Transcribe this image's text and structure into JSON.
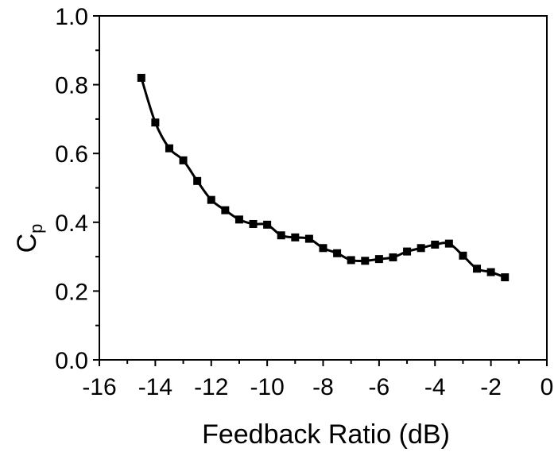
{
  "chart_data": {
    "type": "line",
    "xlabel": "Feedback Ratio (dB)",
    "ylabel_main": "C",
    "ylabel_sub": "p",
    "xlim": [
      -16,
      0
    ],
    "ylim": [
      0.0,
      1.0
    ],
    "xticks": [
      -16,
      -14,
      -12,
      -10,
      -8,
      -6,
      -4,
      -2,
      0
    ],
    "xtick_labels": [
      "-16",
      "-14",
      "-12",
      "-10",
      "-8",
      "-6",
      "-4",
      "-2",
      "0"
    ],
    "yticks": [
      0.0,
      0.2,
      0.4,
      0.6,
      0.8,
      1.0
    ],
    "ytick_labels": [
      "0.0",
      "0.2",
      "0.4",
      "0.6",
      "0.8",
      "1.0"
    ],
    "grid": false,
    "marker": "square",
    "color": "#000000",
    "series": [
      {
        "x": [
          -14.5,
          -14.0,
          -13.5,
          -13.0,
          -12.5,
          -12.0,
          -11.5,
          -11.0,
          -10.5,
          -10.0,
          -9.5,
          -9.0,
          -8.5,
          -8.0,
          -7.5,
          -7.0,
          -6.5,
          -6.0,
          -5.5,
          -5.0,
          -4.5,
          -4.0,
          -3.5,
          -3.0,
          -2.5,
          -2.0,
          -1.5
        ],
        "y": [
          0.82,
          0.69,
          0.615,
          0.58,
          0.52,
          0.465,
          0.435,
          0.408,
          0.395,
          0.393,
          0.362,
          0.356,
          0.352,
          0.325,
          0.31,
          0.29,
          0.288,
          0.293,
          0.298,
          0.315,
          0.325,
          0.335,
          0.338,
          0.303,
          0.265,
          0.255,
          0.24
        ]
      }
    ]
  }
}
